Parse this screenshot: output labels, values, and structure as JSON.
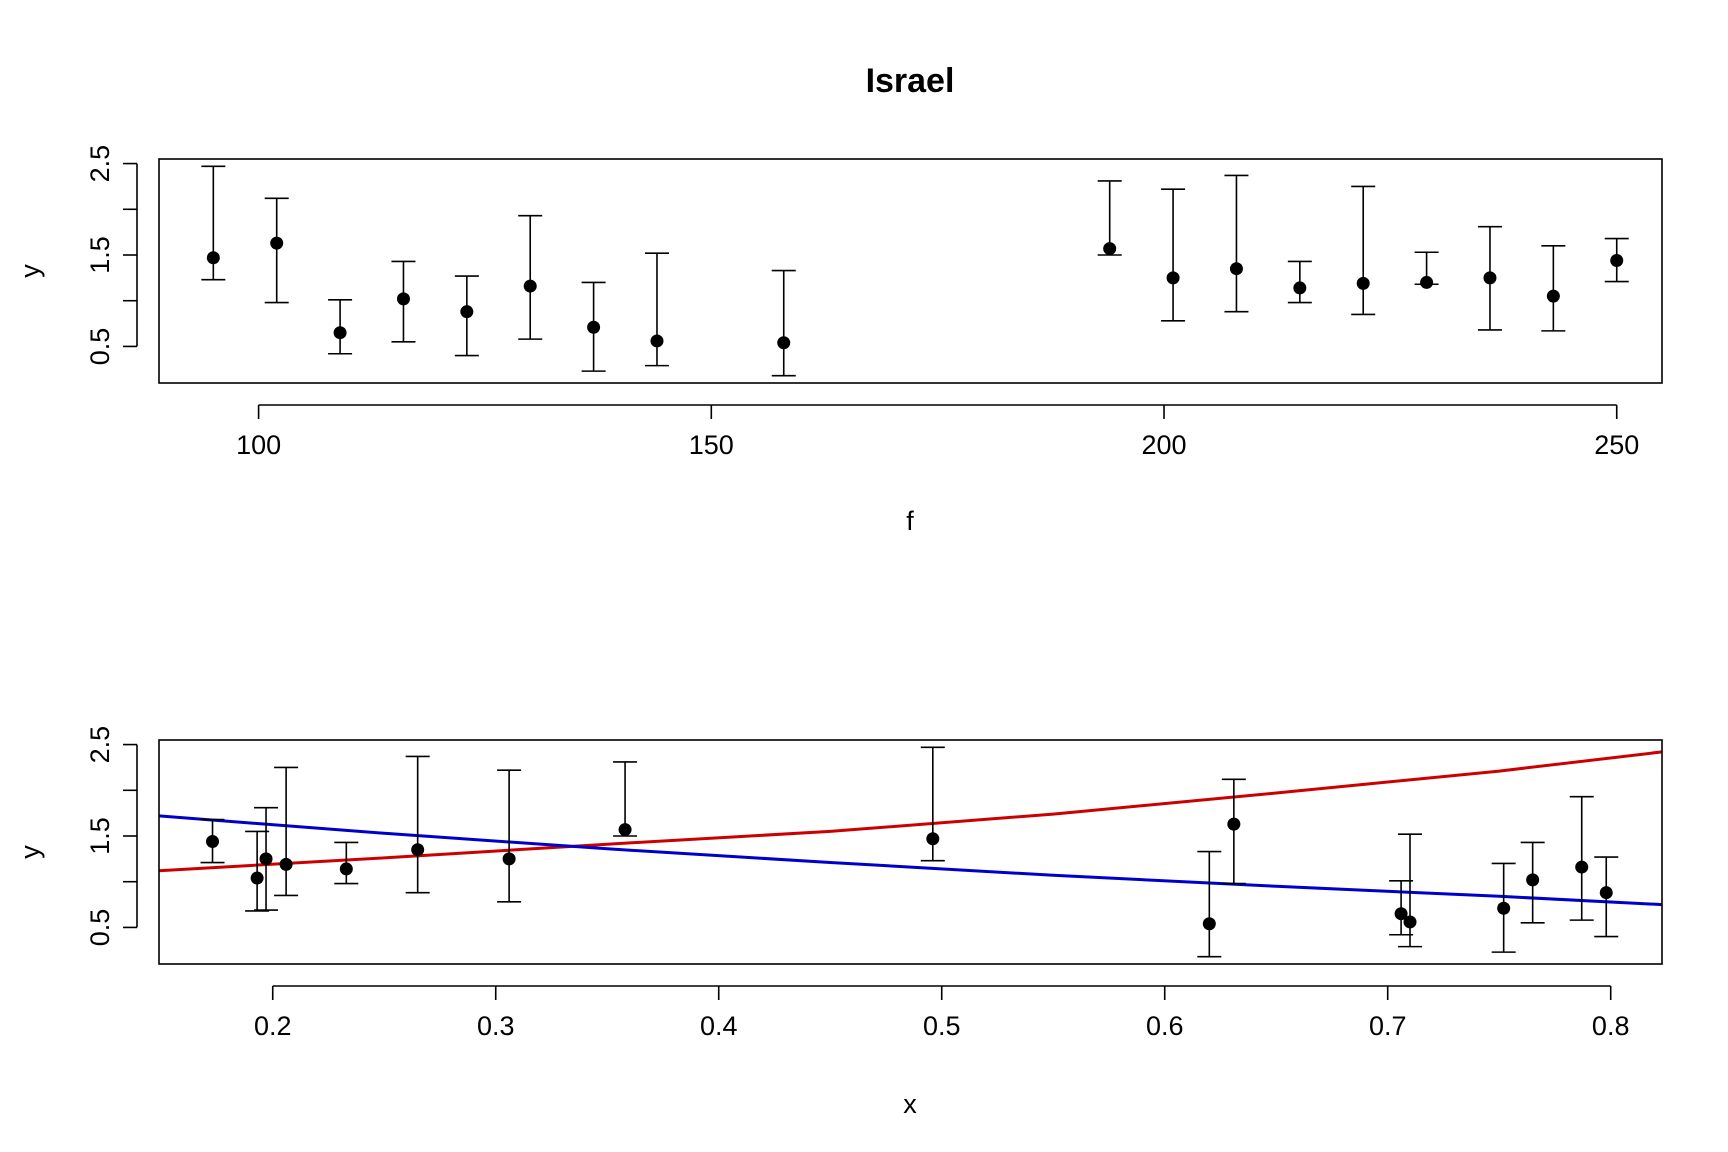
{
  "chart_data": [
    {
      "type": "scatter",
      "title": "Israel",
      "xlabel": "f",
      "ylabel": "y",
      "xlim": [
        89,
        255
      ],
      "ylim": [
        0.1,
        2.55
      ],
      "xticks": [
        {
          "value": 100,
          "label": "100"
        },
        {
          "value": 150,
          "label": "150"
        },
        {
          "value": 200,
          "label": "200"
        },
        {
          "value": 250,
          "label": "250"
        }
      ],
      "yticks": [
        {
          "value": 0.5,
          "label": "0.5"
        },
        {
          "value": 1.0,
          "label": ""
        },
        {
          "value": 1.5,
          "label": "1.5"
        },
        {
          "value": 2.0,
          "label": ""
        },
        {
          "value": 2.5,
          "label": "2.5"
        }
      ],
      "grid": false,
      "points": [
        {
          "x": 95,
          "y": 1.47,
          "lo": 1.23,
          "hi": 2.47
        },
        {
          "x": 102,
          "y": 1.63,
          "lo": 0.98,
          "hi": 2.12
        },
        {
          "x": 109,
          "y": 0.65,
          "lo": 0.42,
          "hi": 1.01
        },
        {
          "x": 116,
          "y": 1.02,
          "lo": 0.55,
          "hi": 1.43
        },
        {
          "x": 123,
          "y": 0.88,
          "lo": 0.4,
          "hi": 1.27
        },
        {
          "x": 130,
          "y": 1.16,
          "lo": 0.58,
          "hi": 1.93
        },
        {
          "x": 137,
          "y": 0.71,
          "lo": 0.23,
          "hi": 1.2
        },
        {
          "x": 144,
          "y": 0.56,
          "lo": 0.29,
          "hi": 1.52
        },
        {
          "x": 158,
          "y": 0.54,
          "lo": 0.18,
          "hi": 1.33
        },
        {
          "x": 194,
          "y": 1.57,
          "lo": 1.5,
          "hi": 2.31
        },
        {
          "x": 201,
          "y": 1.25,
          "lo": 0.78,
          "hi": 2.22
        },
        {
          "x": 208,
          "y": 1.35,
          "lo": 0.88,
          "hi": 2.37
        },
        {
          "x": 215,
          "y": 1.14,
          "lo": 0.98,
          "hi": 1.43
        },
        {
          "x": 222,
          "y": 1.19,
          "lo": 0.85,
          "hi": 2.25
        },
        {
          "x": 229,
          "y": 1.2,
          "lo": 1.18,
          "hi": 1.53
        },
        {
          "x": 236,
          "y": 1.25,
          "lo": 0.68,
          "hi": 1.81
        },
        {
          "x": 243,
          "y": 1.05,
          "lo": 0.67,
          "hi": 1.6
        },
        {
          "x": 250,
          "y": 1.44,
          "lo": 1.21,
          "hi": 1.68
        }
      ]
    },
    {
      "type": "scatter",
      "title": "",
      "xlabel": "x",
      "ylabel": "y",
      "xlim": [
        0.149,
        0.823
      ],
      "ylim": [
        0.1,
        2.55
      ],
      "xticks": [
        {
          "value": 0.2,
          "label": "0.2"
        },
        {
          "value": 0.3,
          "label": "0.3"
        },
        {
          "value": 0.4,
          "label": "0.4"
        },
        {
          "value": 0.5,
          "label": "0.5"
        },
        {
          "value": 0.6,
          "label": "0.6"
        },
        {
          "value": 0.7,
          "label": "0.7"
        },
        {
          "value": 0.8,
          "label": "0.8"
        }
      ],
      "yticks": [
        {
          "value": 0.5,
          "label": "0.5"
        },
        {
          "value": 1.0,
          "label": ""
        },
        {
          "value": 1.5,
          "label": "1.5"
        },
        {
          "value": 2.0,
          "label": ""
        },
        {
          "value": 2.5,
          "label": "2.5"
        }
      ],
      "grid": false,
      "points": [
        {
          "x": 0.173,
          "y": 1.44,
          "lo": 1.21,
          "hi": 1.68
        },
        {
          "x": 0.193,
          "y": 1.04,
          "lo": 0.68,
          "hi": 1.55
        },
        {
          "x": 0.197,
          "y": 1.25,
          "lo": 0.69,
          "hi": 1.81
        },
        {
          "x": 0.206,
          "y": 1.19,
          "lo": 0.85,
          "hi": 2.25
        },
        {
          "x": 0.233,
          "y": 1.14,
          "lo": 0.98,
          "hi": 1.43
        },
        {
          "x": 0.265,
          "y": 1.35,
          "lo": 0.88,
          "hi": 2.37
        },
        {
          "x": 0.306,
          "y": 1.25,
          "lo": 0.78,
          "hi": 2.22
        },
        {
          "x": 0.358,
          "y": 1.57,
          "lo": 1.5,
          "hi": 2.31
        },
        {
          "x": 0.496,
          "y": 1.47,
          "lo": 1.23,
          "hi": 2.47
        },
        {
          "x": 0.62,
          "y": 0.54,
          "lo": 0.18,
          "hi": 1.33
        },
        {
          "x": 0.631,
          "y": 1.63,
          "lo": 0.98,
          "hi": 2.12
        },
        {
          "x": 0.706,
          "y": 0.65,
          "lo": 0.42,
          "hi": 1.01
        },
        {
          "x": 0.71,
          "y": 0.56,
          "lo": 0.29,
          "hi": 1.52
        },
        {
          "x": 0.752,
          "y": 0.71,
          "lo": 0.23,
          "hi": 1.2
        },
        {
          "x": 0.765,
          "y": 1.02,
          "lo": 0.55,
          "hi": 1.43
        },
        {
          "x": 0.787,
          "y": 1.16,
          "lo": 0.58,
          "hi": 1.93
        },
        {
          "x": 0.798,
          "y": 0.88,
          "lo": 0.4,
          "hi": 1.27
        }
      ],
      "series": [
        {
          "color": "#cc0000",
          "x": [
            0.149,
            0.25,
            0.35,
            0.45,
            0.55,
            0.65,
            0.75,
            0.823
          ],
          "y": [
            1.12,
            1.26,
            1.41,
            1.55,
            1.74,
            1.97,
            2.21,
            2.42
          ]
        },
        {
          "color": "#0000cc",
          "x": [
            0.149,
            0.25,
            0.35,
            0.45,
            0.55,
            0.65,
            0.75,
            0.823
          ],
          "y": [
            1.72,
            1.53,
            1.36,
            1.21,
            1.07,
            0.95,
            0.84,
            0.75
          ]
        }
      ]
    }
  ]
}
